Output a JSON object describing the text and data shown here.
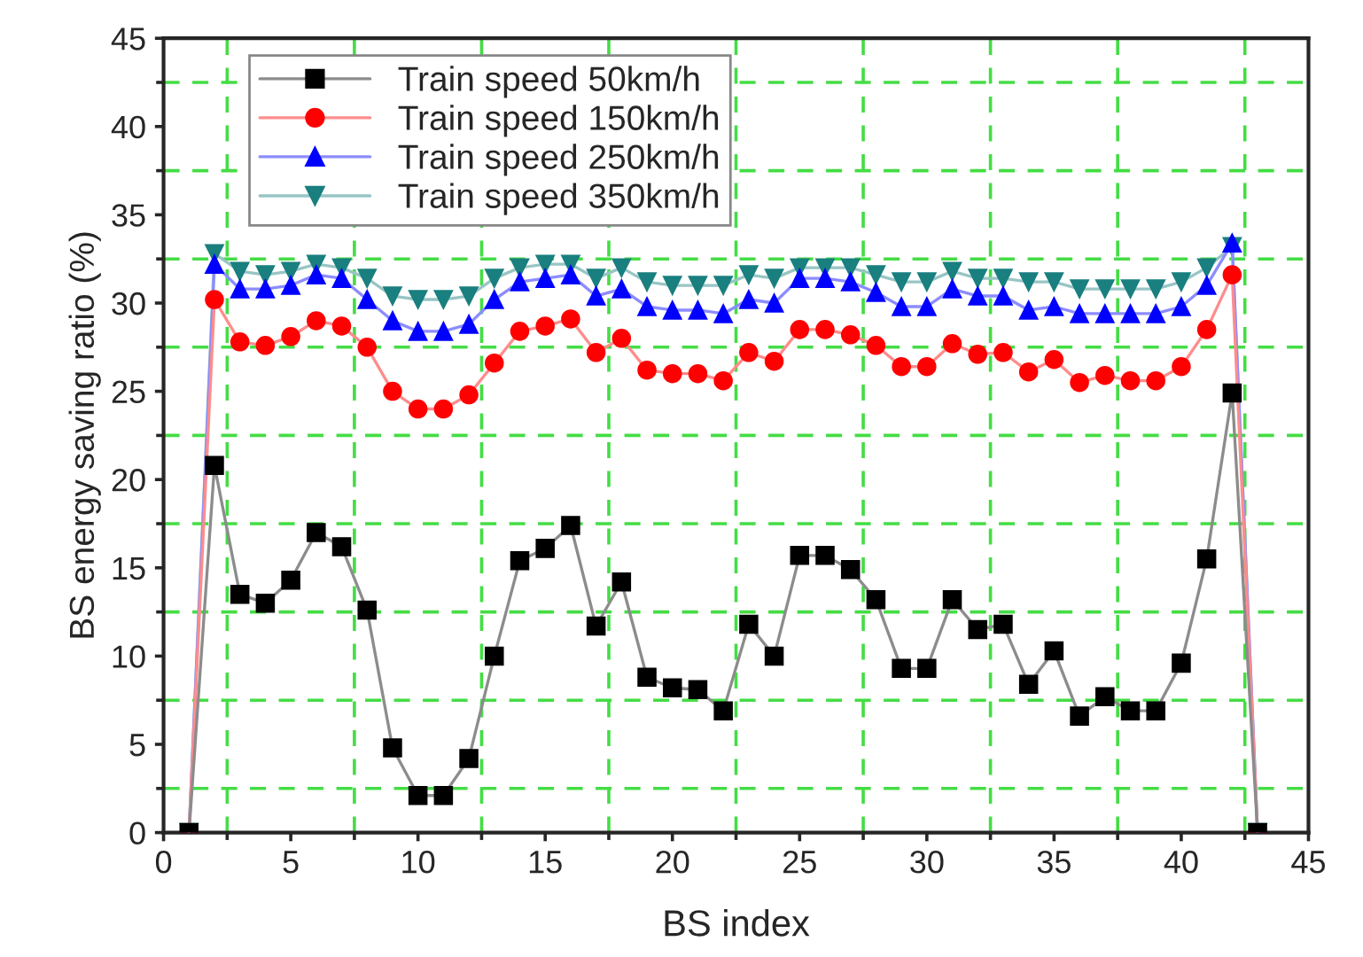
{
  "chart_data": {
    "type": "line",
    "xlabel": "BS index",
    "ylabel": "BS energy saving ratio (%)",
    "x": [
      1,
      2,
      3,
      4,
      5,
      6,
      7,
      8,
      9,
      10,
      11,
      12,
      13,
      14,
      15,
      16,
      17,
      18,
      19,
      20,
      21,
      22,
      23,
      24,
      25,
      26,
      27,
      28,
      29,
      30,
      31,
      32,
      33,
      34,
      35,
      36,
      37,
      38,
      39,
      40,
      41,
      42,
      43
    ],
    "series": [
      {
        "name": "Train speed 50km/h",
        "color": "#000000",
        "marker": "square",
        "values": [
          0,
          20.8,
          13.5,
          13,
          14.3,
          17,
          16.2,
          12.6,
          4.8,
          2.1,
          2.1,
          4.2,
          10,
          15.4,
          16.1,
          17.4,
          11.7,
          14.2,
          8.8,
          8.2,
          8.1,
          6.9,
          11.8,
          10,
          15.7,
          15.7,
          14.9,
          13.2,
          9.3,
          9.3,
          13.2,
          11.5,
          11.8,
          8.4,
          10.3,
          6.6,
          7.7,
          6.9,
          6.9,
          9.6,
          15.5,
          24.9,
          0
        ]
      },
      {
        "name": "Train speed 150km/h",
        "color": "#ff0000",
        "marker": "circle",
        "values": [
          0,
          30.2,
          27.8,
          27.6,
          28.1,
          29,
          28.7,
          27.5,
          25,
          24,
          24,
          24.8,
          26.6,
          28.4,
          28.7,
          29.1,
          27.2,
          28,
          26.2,
          26,
          26,
          25.6,
          27.2,
          26.7,
          28.5,
          28.5,
          28.2,
          27.6,
          26.4,
          26.4,
          27.7,
          27.1,
          27.2,
          26.1,
          26.8,
          25.5,
          25.9,
          25.6,
          25.6,
          26.4,
          28.5,
          31.6,
          0
        ]
      },
      {
        "name": "Train speed 250km/h",
        "color": "#0000ff",
        "marker": "triangle",
        "values": [
          0,
          32.2,
          30.8,
          30.8,
          31,
          31.6,
          31.4,
          30.2,
          29,
          28.4,
          28.4,
          28.8,
          30.2,
          31.2,
          31.4,
          31.6,
          30.4,
          30.8,
          29.8,
          29.6,
          29.6,
          29.4,
          30.2,
          30,
          31.4,
          31.4,
          31.2,
          30.6,
          29.8,
          29.8,
          30.8,
          30.4,
          30.4,
          29.6,
          29.8,
          29.4,
          29.4,
          29.4,
          29.4,
          29.8,
          31,
          33.4,
          0
        ]
      },
      {
        "name": "Train speed 350km/h",
        "color": "#1a7f7f",
        "marker": "triangle_down",
        "values": [
          0,
          32.8,
          31.8,
          31.6,
          31.8,
          32.2,
          32,
          31.4,
          30.4,
          30.2,
          30.2,
          30.4,
          31.4,
          32,
          32.2,
          32.2,
          31.4,
          32,
          31.2,
          31,
          31,
          31,
          31.6,
          31.4,
          32,
          32,
          32,
          31.6,
          31.2,
          31.2,
          31.8,
          31.4,
          31.4,
          31.2,
          31.2,
          30.8,
          30.8,
          30.8,
          30.8,
          31.2,
          32,
          33.2,
          0
        ]
      }
    ],
    "xlim": [
      0,
      45
    ],
    "xticks": [
      0,
      {
        "value": 2.5,
        "label": null
      },
      5,
      {
        "value": 7.5,
        "label": null
      },
      10,
      {
        "value": 12.5,
        "label": null
      },
      15,
      {
        "value": 17.5,
        "label": null
      },
      20,
      {
        "value": 22.5,
        "label": null
      },
      25,
      {
        "value": 27.5,
        "label": null
      },
      30,
      {
        "value": 32.5,
        "label": null
      },
      35,
      {
        "value": 37.5,
        "label": null
      },
      40,
      {
        "value": 42.5,
        "label": null
      },
      45
    ],
    "ylim": [
      0,
      45
    ],
    "yticks": [
      0,
      {
        "value": 2.5,
        "label": null
      },
      5,
      {
        "value": 7.5,
        "label": null
      },
      10,
      {
        "value": 12.5,
        "label": null
      },
      15,
      {
        "value": 17.5,
        "label": null
      },
      20,
      {
        "value": 22.5,
        "label": null
      },
      25,
      {
        "value": 27.5,
        "label": null
      },
      30,
      {
        "value": 32.5,
        "label": null
      },
      35,
      {
        "value": 37.5,
        "label": null
      },
      40,
      {
        "value": 42.5,
        "label": null
      },
      45
    ],
    "grid": true,
    "legend": "top left",
    "line_style": "solid"
  }
}
